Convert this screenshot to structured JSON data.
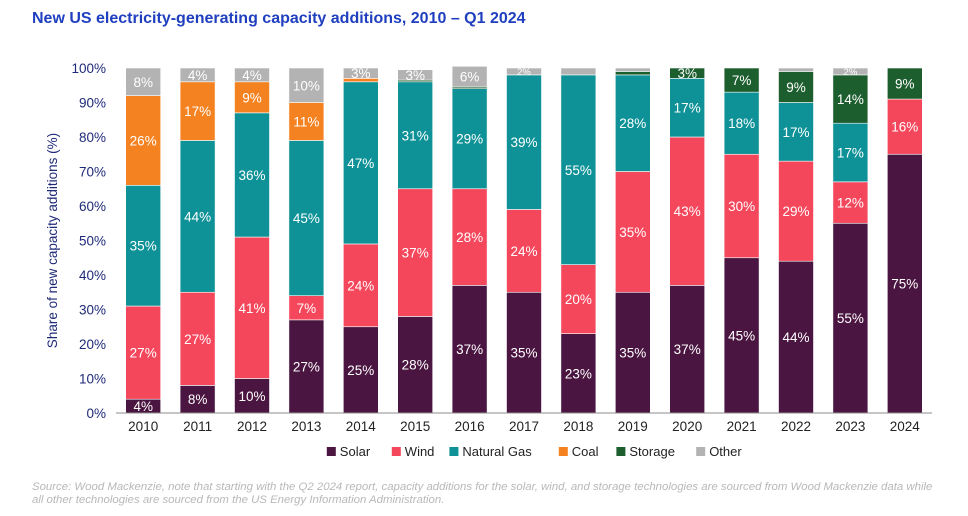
{
  "title": "New US electricity-generating capacity additions, 2010 – Q1 2024",
  "source": "Source: Wood Mackenzie, note that starting with the Q2 2024 report, capacity additions for the solar, wind, and storage technologies are sourced from Wood Mackenzie data while all other technologies are sourced from the US Energy Information Administration.",
  "chart_data": {
    "type": "bar",
    "stacked": true,
    "title": "New US electricity-generating capacity additions, 2010 – Q1 2024",
    "xlabel": "",
    "ylabel": "Share of new capacity additions (%)",
    "ylim": [
      0,
      100
    ],
    "yticks": [
      "0%",
      "10%",
      "20%",
      "30%",
      "40%",
      "50%",
      "60%",
      "70%",
      "80%",
      "90%",
      "100%"
    ],
    "legend_position": "bottom",
    "grid": false,
    "categories": [
      "2010",
      "2011",
      "2012",
      "2013",
      "2014",
      "2015",
      "2016",
      "2017",
      "2018",
      "2019",
      "2020",
      "2021",
      "2022",
      "2023",
      "2024"
    ],
    "series": [
      {
        "name": "Solar",
        "color": "#4a1540",
        "values": [
          4,
          8,
          10,
          27,
          25,
          28,
          37,
          35,
          23,
          35,
          37,
          45,
          44,
          55,
          75
        ],
        "labels": [
          "4%",
          "8%",
          "10%",
          "27%",
          "25%",
          "28%",
          "37%",
          "35%",
          "23%",
          "35%",
          "37%",
          "45%",
          "44%",
          "55%",
          "75%"
        ]
      },
      {
        "name": "Wind",
        "color": "#f4475c",
        "values": [
          27,
          27,
          41,
          7,
          24,
          37,
          28,
          24,
          20,
          35,
          43,
          30,
          29,
          12,
          16
        ],
        "labels": [
          "27%",
          "27%",
          "41%",
          "7%",
          "24%",
          "37%",
          "28%",
          "24%",
          "20%",
          "35%",
          "43%",
          "30%",
          "29%",
          "12%",
          "16%"
        ]
      },
      {
        "name": "Natural Gas",
        "color": "#0f9297",
        "values": [
          35,
          44,
          36,
          45,
          47,
          31,
          29,
          39,
          55,
          28,
          17,
          18,
          17,
          17,
          0
        ],
        "labels": [
          "35%",
          "44%",
          "36%",
          "45%",
          "47%",
          "31%",
          "29%",
          "39%",
          "55%",
          "28%",
          "17%",
          "18%",
          "17%",
          "17%",
          ""
        ]
      },
      {
        "name": "Coal",
        "color": "#f58220",
        "values": [
          26,
          17,
          9,
          11,
          1,
          0,
          0,
          0,
          0,
          0,
          0,
          0,
          0,
          0,
          0
        ],
        "labels": [
          "26%",
          "17%",
          "9%",
          "11%",
          "",
          "",
          "",
          "",
          "",
          "",
          "",
          "",
          "",
          "",
          ""
        ]
      },
      {
        "name": "Storage",
        "color": "#1d5e2e",
        "values": [
          0,
          0,
          0,
          0,
          0,
          0.5,
          0.5,
          0,
          0,
          1,
          3,
          7,
          9,
          14,
          9
        ],
        "labels": [
          "",
          "",
          "",
          "",
          "",
          "",
          "",
          "",
          "",
          "",
          "3%",
          "7%",
          "9%",
          "14%",
          "9%"
        ]
      },
      {
        "name": "Other",
        "color": "#b3b3b3",
        "values": [
          8,
          4,
          4,
          10,
          3,
          3,
          6,
          2,
          2,
          1,
          0,
          0,
          1,
          2,
          0
        ],
        "labels": [
          "8%",
          "4%",
          "4%",
          "10%",
          "3%",
          "3%",
          "6%",
          "2%",
          "",
          "",
          "",
          "",
          "",
          "2%",
          ""
        ]
      }
    ]
  }
}
